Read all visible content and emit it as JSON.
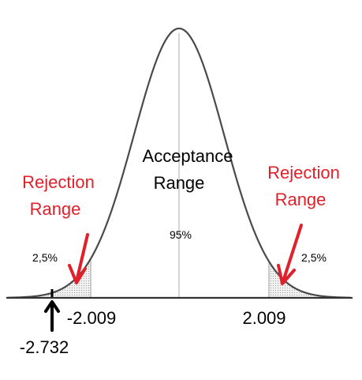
{
  "labels": {
    "acceptance_line1": "Acceptance",
    "acceptance_line2": "Range",
    "center_percent": "95%",
    "rejection_left_line1": "Rejection",
    "rejection_left_line2": "Range",
    "rejection_right_line1": "Rejection",
    "rejection_right_line2": "Range",
    "tail_left_percent": "2,5%",
    "tail_right_percent": "2,5%",
    "critical_left": "-2.009",
    "critical_right": "2.009",
    "test_statistic": "-2.732"
  },
  "colors": {
    "curve": "#4a4a4a",
    "rejection_text": "#e0202a",
    "arrow_red": "#e0202a",
    "arrow_black": "#000000",
    "tail_fill": "#e8e8e8"
  }
}
